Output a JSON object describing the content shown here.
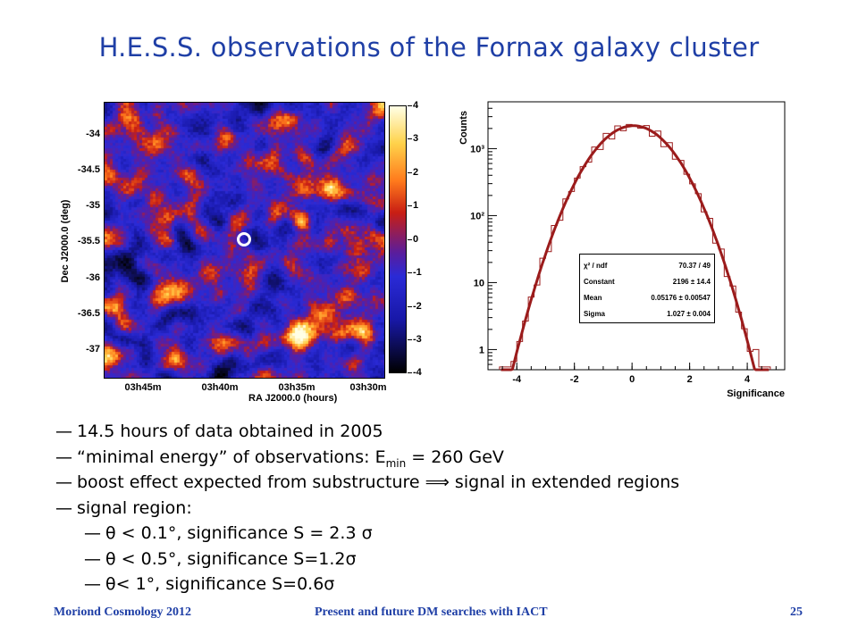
{
  "slide": {
    "title": "H.E.S.S. observations of the Fornax galaxy cluster",
    "footer": {
      "left": "Moriond Cosmology 2012",
      "center": "Present and future DM searches with IACT",
      "right": "25"
    }
  },
  "skymap": {
    "xlabel": "RA J2000.0 (hours)",
    "ylabel": "Dec J2000.0 (deg)",
    "ra_ticks": [
      "03h45m",
      "03h40m",
      "03h35m",
      "03h30m"
    ],
    "dec_ticks": [
      "-34",
      "-34.5",
      "-35",
      "-35.5",
      "-36",
      "-36.5",
      "-37"
    ],
    "colorbar_ticks": [
      "4",
      "3",
      "2",
      "1",
      "0",
      "-1",
      "-2",
      "-3",
      "-4"
    ],
    "colorbar_range": [
      -4,
      4
    ]
  },
  "chart_data": {
    "type": "bar",
    "xlabel": "Significance",
    "ylabel": "Counts",
    "x_ticks": [
      "-4",
      "-2",
      "0",
      "2",
      "4"
    ],
    "y_ticks": [
      "1",
      "10",
      "10³",
      "10²"
    ],
    "y_scale": "log",
    "xlim": [
      -5,
      5.3
    ],
    "ylim": [
      0.5,
      5000
    ],
    "fit": {
      "function": "gaussian",
      "constant": 2196,
      "mean": 0.05176,
      "sigma": 1.027,
      "color": "#9b1b1b"
    },
    "stats": [
      {
        "label": "χ² / ndf",
        "value": "70.37 / 49"
      },
      {
        "label": "Constant",
        "value": "2196 ± 14.4"
      },
      {
        "label": "Mean",
        "value": "0.05176 ± 0.00547"
      },
      {
        "label": "Sigma",
        "value": "1.027 ± 0.004"
      }
    ]
  },
  "bullets": [
    {
      "text": "14.5 hours of data obtained in 2005"
    },
    {
      "pre": "“minimal energy” of observations: E",
      "sub": "min",
      "post": " = 260 GeV"
    },
    {
      "text": "boost effect expected from substructure ⟹ signal in extended regions"
    },
    {
      "text": "signal region:"
    }
  ],
  "sub_bullets": [
    {
      "text": "θ  < 0.1°, significance S = 2.3 σ"
    },
    {
      "text": "θ  < 0.5°, significance S=1.2σ"
    },
    {
      "text": "θ< 1°, significance S=0.6σ"
    }
  ],
  "dash": "—"
}
